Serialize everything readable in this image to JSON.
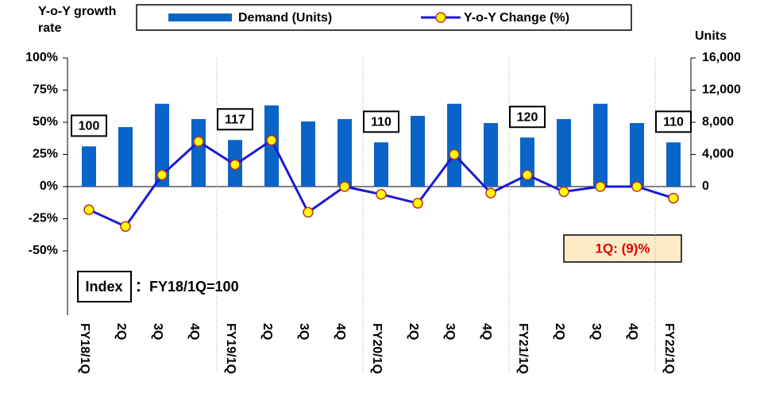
{
  "chart_data": {
    "type": "bar_line",
    "y_axis_label": "Y-o-Y growth rate",
    "y2_axis_label": "Units",
    "categories": [
      "FY18/1Q",
      "2Q",
      "3Q",
      "4Q",
      "FY19/1Q",
      "2Q",
      "3Q",
      "4Q",
      "FY20/1Q",
      "2Q",
      "3Q",
      "4Q",
      "FY21/1Q",
      "2Q",
      "3Q",
      "4Q",
      "FY22/1Q"
    ],
    "series": [
      {
        "name": "Demand (Units)",
        "type": "bar",
        "axis": "y2",
        "color": "#0a64c8",
        "values": [
          5000,
          7400,
          10300,
          8400,
          5800,
          10100,
          8100,
          8400,
          5500,
          8800,
          10300,
          7900,
          6100,
          8400,
          10300,
          7900,
          5500
        ]
      },
      {
        "name": "Y-o-Y Change (%)",
        "type": "line",
        "axis": "y",
        "color": "#1a1ad6",
        "marker_color": "#ffff00",
        "values": [
          -18,
          -31,
          9,
          35,
          17,
          36,
          -20,
          0,
          -6,
          -13,
          25,
          -5,
          9,
          -4,
          0,
          0,
          -9
        ]
      }
    ],
    "index_values": [
      100,
      null,
      null,
      null,
      117,
      null,
      null,
      null,
      110,
      null,
      null,
      null,
      120,
      null,
      null,
      null,
      110
    ],
    "ylim": [
      -100,
      100
    ],
    "yticks": [
      {
        "value": -50,
        "label": "-50%"
      },
      {
        "value": -25,
        "label": "-25%"
      },
      {
        "value": 0,
        "label": "0%"
      },
      {
        "value": 25,
        "label": "25%"
      },
      {
        "value": 50,
        "label": "50%"
      },
      {
        "value": 75,
        "label": "75%"
      },
      {
        "value": 100,
        "label": "100%"
      }
    ],
    "y2lim": [
      -16000,
      16000
    ],
    "y2ticks": [
      0,
      {
        "value": 4000,
        "label": "4,000"
      },
      {
        "value": 8000,
        "label": "8,000"
      },
      {
        "value": 12000,
        "label": "12,000"
      },
      {
        "value": 16000,
        "label": "16,000"
      }
    ],
    "index_note_label": "Index",
    "index_note_text": "：FY18/1Q=100",
    "callout": "1Q: (9)%"
  }
}
